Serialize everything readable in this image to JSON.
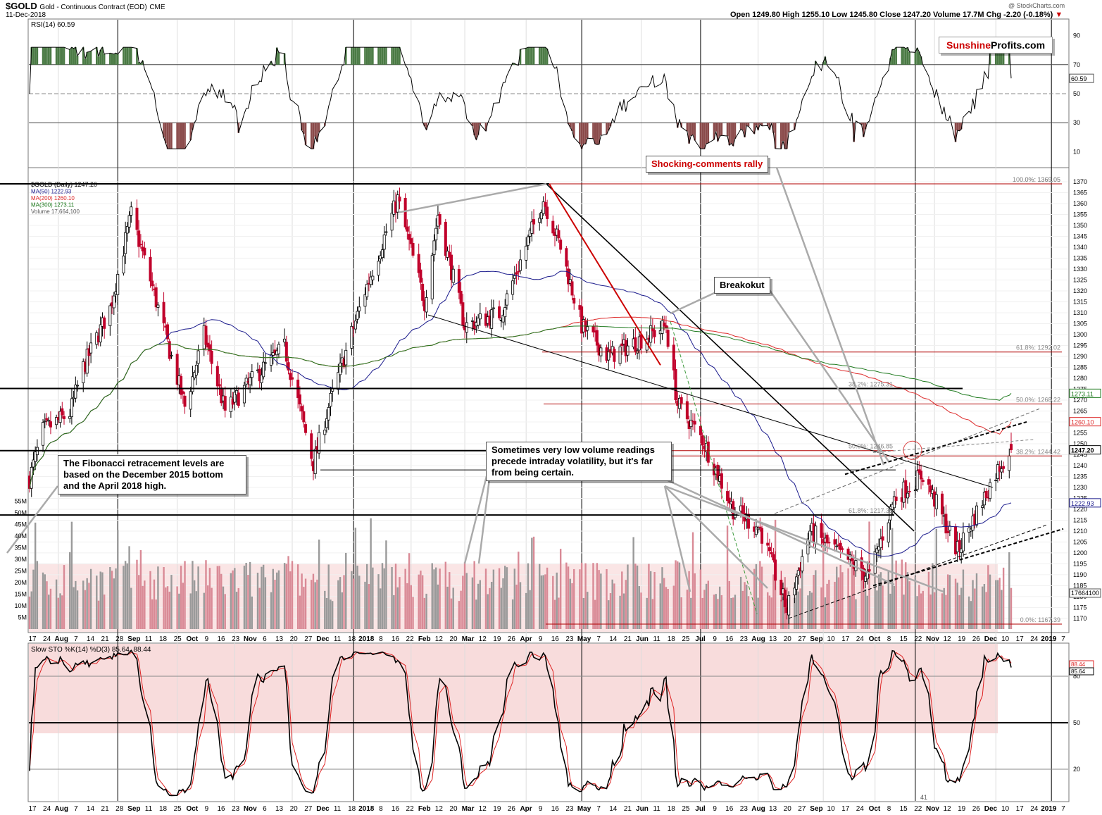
{
  "header": {
    "symbol": "$GOLD",
    "name": "Gold - Continuous Contract (EOD)",
    "exchange": "CME",
    "date": "11-Dec-2018",
    "stats": "Open 1249.80  High 1255.10  Low 1245.80  Close 1247.20  Volume 17.7M  Chg -2.20 (-0.18%)",
    "stats_arrow": "▼",
    "watermark": "@ StockCharts.com"
  },
  "logo": {
    "part1": "Sunshine",
    "part2": "Profits.com"
  },
  "colors": {
    "price_up": "#000000",
    "price_down": "#c0002a",
    "ma50": "#1a1a8c",
    "ma200": "#dd2a2a",
    "ma300": "#1e7a1e",
    "volume_up": "#9a9a9a",
    "volume_down": "#d98a96",
    "band": "#f5d0d0",
    "rsi_over": "#4a7a44",
    "rsi_under": "#8a4a4a",
    "fib": "#b00000"
  },
  "rsi_panel": {
    "legend": "RSI(14) 60.59",
    "ticks": [
      "90",
      "70",
      "50",
      "30",
      "10"
    ],
    "current": "60.59"
  },
  "price_panel": {
    "legend": [
      "$GOLD (Daily) 1247.20",
      "MA(50) 1222.93",
      "MA(200) 1260.10",
      "MA(300) 1273.11",
      "Volume 17,664,100"
    ],
    "tags": {
      "ma300": "1273.11",
      "ma200": "1260.10",
      "close": "1247.20",
      "ma50": "1222.93",
      "volume": "17664100"
    },
    "fib_levels": [
      {
        "label": "0.0%: 1369.05",
        "value": 1369.05
      },
      {
        "label": "100.0%: 1369.05",
        "value": 1369.05
      },
      {
        "label": "61.8%: 1292.02",
        "value": 1292.02
      },
      {
        "label": "38.2%: 1275.31",
        "value": 1275.31
      },
      {
        "label": "50.0%: 1268.22",
        "value": 1268.22
      },
      {
        "label": "50.0%: 1246.85",
        "value": 1246.85
      },
      {
        "label": "38.2%: 1244.42",
        "value": 1244.42
      },
      {
        "label": "61.8%: 1217.35",
        "value": 1217.35
      },
      {
        "label": "0.0%: 1167.39",
        "value": 1167.39
      }
    ],
    "volume_ticks": [
      "55M",
      "50M",
      "45M",
      "40M",
      "35M",
      "30M",
      "25M",
      "20M",
      "15M",
      "10M",
      "5M"
    ]
  },
  "sto_panel": {
    "legend": "Slow STO %K(14) %D(3) 85.64, 88.44",
    "ticks": [
      "80",
      "50",
      "20"
    ],
    "tags": [
      "88.44",
      "85.64"
    ],
    "misc_label": "41"
  },
  "x_axis_labels": [
    "17",
    "24",
    "Aug",
    "7",
    "14",
    "21",
    "28",
    "Sep",
    "11",
    "18",
    "25",
    "Oct",
    "9",
    "16",
    "23",
    "Nov",
    "6",
    "13",
    "20",
    "27",
    "Dec",
    "11",
    "18",
    "2018",
    "8",
    "16",
    "22",
    "Feb",
    "12",
    "20",
    "Mar",
    "12",
    "19",
    "26",
    "Apr",
    "9",
    "16",
    "23",
    "May",
    "7",
    "14",
    "21",
    "Jun",
    "11",
    "18",
    "25",
    "Jul",
    "9",
    "16",
    "23",
    "Aug",
    "13",
    "20",
    "27",
    "Sep",
    "10",
    "17",
    "24",
    "Oct",
    "8",
    "15",
    "22",
    "Nov",
    "12",
    "19",
    "26",
    "Dec",
    "10",
    "17",
    "24",
    "2019",
    "7"
  ],
  "annotations": {
    "shocking": "Shocking-comments rally",
    "breakout": "Breakokut",
    "volume_note": "Sometimes very low volume readings precede intraday volatility, but it's far from being certain.",
    "fib_note": "The Fibonacci retracement levels are based on the December 2015 bottom and the April 2018 high."
  },
  "chart_data": {
    "type": "candlestick",
    "title": "$GOLD Gold - Continuous Contract (EOD) CME",
    "period": "Daily",
    "ylim": [
      1165,
      1375
    ],
    "y_ticks": [
      1170,
      1175,
      1180,
      1185,
      1190,
      1195,
      1200,
      1205,
      1210,
      1215,
      1220,
      1225,
      1230,
      1235,
      1240,
      1245,
      1250,
      1255,
      1260,
      1265,
      1270,
      1275,
      1280,
      1285,
      1290,
      1295,
      1300,
      1305,
      1310,
      1315,
      1320,
      1325,
      1330,
      1335,
      1340,
      1345,
      1350,
      1355,
      1360,
      1365,
      1370
    ],
    "price_path": [
      [
        "2017-07-17",
        1234
      ],
      [
        "2017-07-24",
        1256
      ],
      [
        "2017-08-07",
        1264
      ],
      [
        "2017-08-14",
        1285
      ],
      [
        "2017-08-28",
        1312
      ],
      [
        "2017-09-08",
        1355
      ],
      [
        "2017-09-18",
        1325
      ],
      [
        "2017-10-06",
        1267
      ],
      [
        "2017-10-16",
        1300
      ],
      [
        "2017-10-27",
        1265
      ],
      [
        "2017-11-13",
        1282
      ],
      [
        "2017-11-27",
        1294
      ],
      [
        "2017-12-12",
        1241
      ],
      [
        "2017-12-20",
        1267
      ],
      [
        "2018-01-08",
        1320
      ],
      [
        "2018-01-25",
        1362
      ],
      [
        "2018-02-08",
        1315
      ],
      [
        "2018-02-15",
        1355
      ],
      [
        "2018-03-01",
        1304
      ],
      [
        "2018-03-20",
        1310
      ],
      [
        "2018-04-11",
        1362
      ],
      [
        "2018-04-20",
        1340
      ],
      [
        "2018-05-01",
        1304
      ],
      [
        "2018-05-15",
        1290
      ],
      [
        "2018-06-14",
        1304
      ],
      [
        "2018-06-20",
        1268
      ],
      [
        "2018-07-03",
        1252
      ],
      [
        "2018-07-19",
        1220
      ],
      [
        "2018-08-02",
        1211
      ],
      [
        "2018-08-16",
        1174
      ],
      [
        "2018-08-28",
        1210
      ],
      [
        "2018-09-28",
        1189
      ],
      [
        "2018-10-11",
        1225
      ],
      [
        "2018-10-26",
        1236
      ],
      [
        "2018-11-13",
        1201
      ],
      [
        "2018-11-26",
        1224
      ],
      [
        "2018-12-05",
        1240
      ],
      [
        "2018-12-11",
        1247.2
      ]
    ],
    "last_bar": {
      "open": 1249.8,
      "high": 1255.1,
      "low": 1245.8,
      "close": 1247.2,
      "volume": 17664100
    },
    "moving_averages": [
      {
        "name": "MA(50)",
        "last": 1222.93
      },
      {
        "name": "MA(200)",
        "last": 1260.1
      },
      {
        "name": "MA(300)",
        "last": 1273.11
      }
    ],
    "rsi": {
      "name": "RSI(14)",
      "last": 60.59,
      "ylim": [
        0,
        100
      ],
      "levels": [
        70,
        50,
        30
      ]
    },
    "stochastic": {
      "name": "Slow STO %K(14) %D(3)",
      "k_last": 85.64,
      "d_last": 88.44,
      "ylim": [
        0,
        100
      ],
      "levels": [
        80,
        50,
        20
      ]
    },
    "grid": true
  }
}
